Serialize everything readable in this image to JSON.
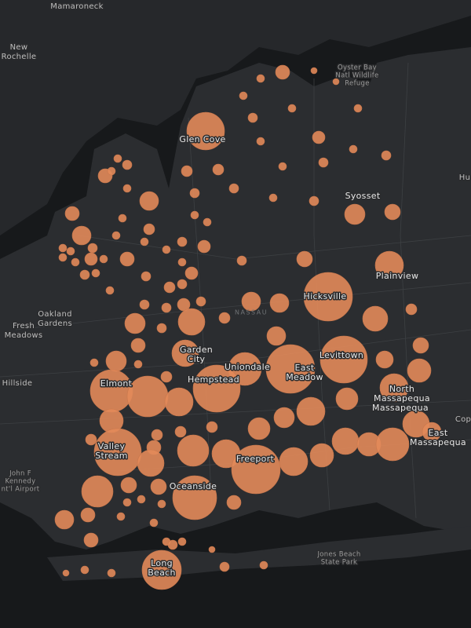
{
  "map": {
    "labels": [
      {
        "lines": [
          "Mamaroneck"
        ]
      },
      {
        "lines": [
          "New",
          "Rochelle"
        ]
      },
      {
        "lines": [
          "Oyster Bay",
          "Natl Wildlife",
          "Refuge"
        ]
      },
      {
        "lines": [
          "Glen Cove"
        ]
      },
      {
        "lines": [
          "Syosset"
        ]
      },
      {
        "lines": [
          "Hu"
        ]
      },
      {
        "lines": [
          "Plainview"
        ]
      },
      {
        "lines": [
          "Hicksville"
        ]
      },
      {
        "lines": [
          "Oakland",
          "Gardens"
        ]
      },
      {
        "lines": [
          "Fresh",
          "Meadows"
        ]
      },
      {
        "lines": [
          "NASSAU"
        ]
      },
      {
        "lines": [
          "Garden",
          "City"
        ]
      },
      {
        "lines": [
          "Levittown"
        ]
      },
      {
        "lines": [
          "Uniondale"
        ]
      },
      {
        "lines": [
          "East",
          "Meadow"
        ]
      },
      {
        "lines": [
          "Hillside"
        ]
      },
      {
        "lines": [
          "Elmont"
        ]
      },
      {
        "lines": [
          "Hempstead"
        ]
      },
      {
        "lines": [
          "North",
          "Massapequa"
        ]
      },
      {
        "lines": [
          "Massapequa"
        ]
      },
      {
        "lines": [
          "Cop"
        ]
      },
      {
        "lines": [
          "East",
          "Massapequa"
        ]
      },
      {
        "lines": [
          "Valley",
          "Stream"
        ]
      },
      {
        "lines": [
          "Freeport"
        ]
      },
      {
        "lines": [
          "John F",
          "Kennedy",
          "nt'l Airport"
        ]
      },
      {
        "lines": [
          "Oceanside"
        ]
      },
      {
        "lines": [
          "Jones Beach",
          "State Park"
        ]
      },
      {
        "lines": [
          "Long",
          "Beach"
        ]
      }
    ]
  }
}
